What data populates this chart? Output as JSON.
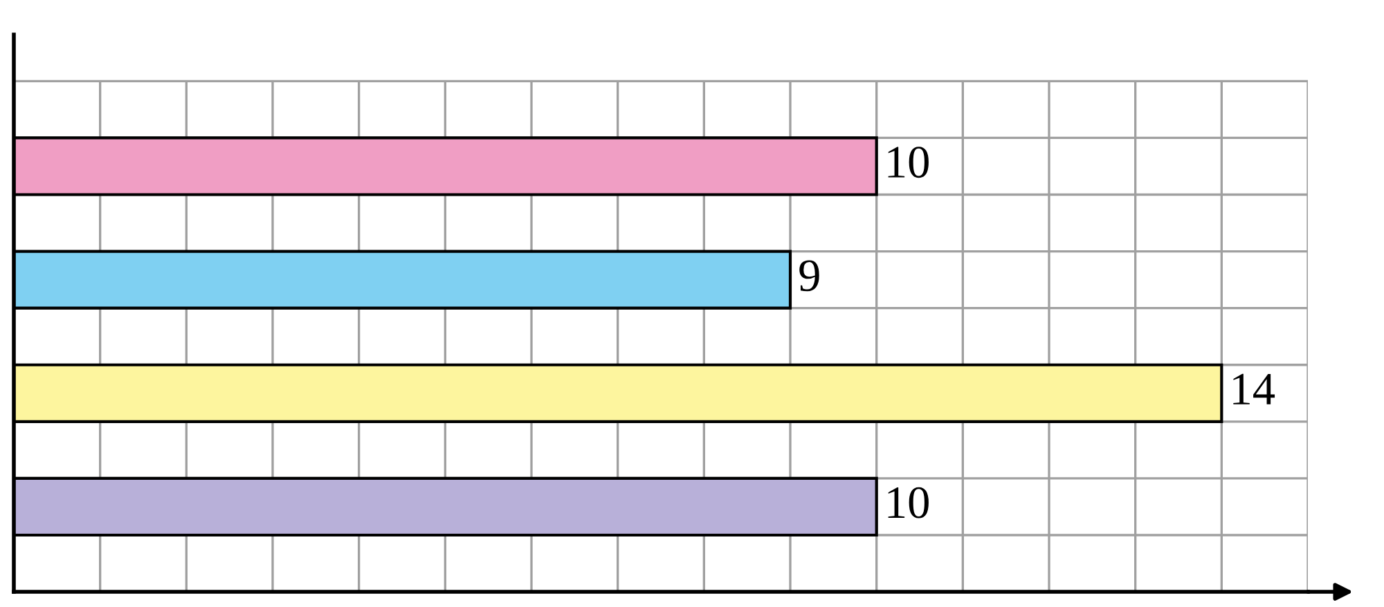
{
  "chart_data": {
    "type": "bar",
    "orientation": "horizontal",
    "categories": [
      null,
      null,
      null,
      null
    ],
    "values": [
      10,
      9,
      14,
      10
    ],
    "colors": [
      "#f09ec4",
      "#7fd0f2",
      "#fdf59e",
      "#b8b0d9"
    ],
    "xlim": [
      0,
      15
    ],
    "xticks": [
      {
        "value": 0,
        "label": null
      },
      {
        "value": 1,
        "label": null
      },
      {
        "value": 2,
        "label": null
      },
      {
        "value": 3,
        "label": null
      },
      {
        "value": 4,
        "label": null
      },
      {
        "value": 5,
        "label": null
      },
      {
        "value": 6,
        "label": null
      },
      {
        "value": 7,
        "label": null
      },
      {
        "value": 8,
        "label": null
      },
      {
        "value": 9,
        "label": null
      },
      {
        "value": 10,
        "label": null
      },
      {
        "value": 11,
        "label": null
      },
      {
        "value": 12,
        "label": null
      },
      {
        "value": 13,
        "label": null
      },
      {
        "value": 14,
        "label": null
      },
      {
        "value": 15,
        "label": null
      }
    ],
    "grid": true,
    "data_labels": true
  }
}
